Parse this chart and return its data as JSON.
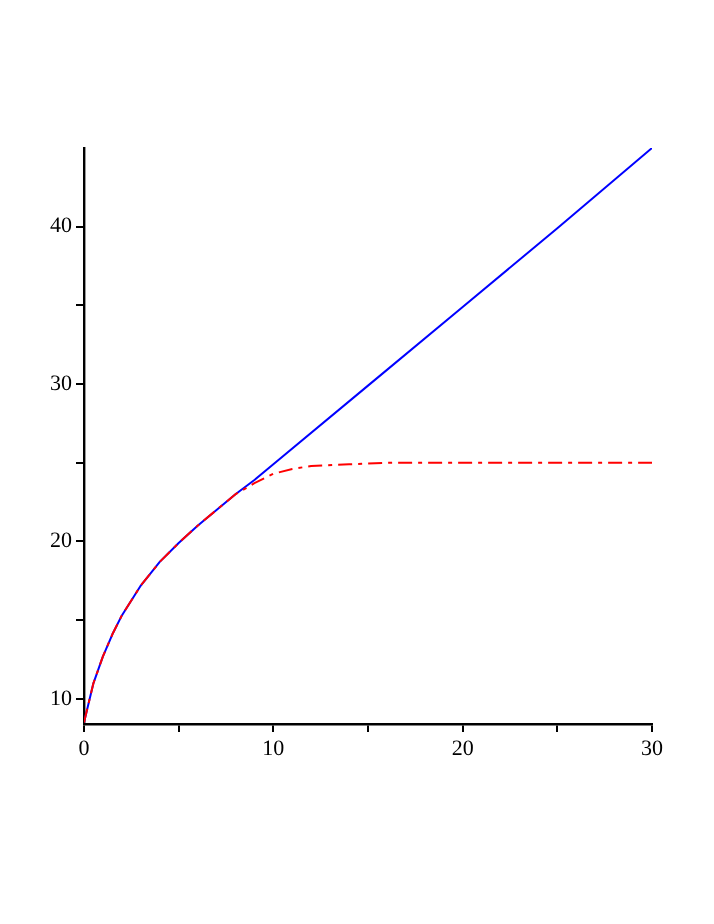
{
  "chart_data": {
    "type": "line",
    "xlim": [
      0,
      30
    ],
    "xticks": [
      0,
      {
        "value": 5,
        "label": null
      },
      10,
      {
        "value": 15,
        "label": null
      },
      20,
      {
        "value": 25,
        "label": null
      },
      30
    ],
    "ylim": [
      8.4,
      45
    ],
    "yticks": [
      10,
      {
        "value": 15,
        "label": null
      },
      20,
      {
        "value": 25,
        "label": null
      },
      30,
      {
        "value": 35,
        "label": null
      },
      40
    ],
    "grid": false,
    "legend": false,
    "marker": "none",
    "series": [
      {
        "color": "#0000ff",
        "line_style": "solid",
        "x": [
          0,
          0.5,
          1,
          1.5,
          2,
          3,
          4,
          5,
          6,
          7,
          8,
          9,
          10,
          15,
          20,
          25,
          30
        ],
        "values": [
          8.5,
          11,
          12.7,
          14.1,
          15.3,
          17.2,
          18.7,
          19.9,
          21.0,
          22.0,
          23.0,
          23.9,
          24.9,
          29.9,
          34.9,
          39.9,
          45
        ]
      },
      {
        "color": "#ff0000",
        "line_style": "dashed",
        "x": [
          0,
          0.5,
          1,
          1.5,
          2,
          3,
          4,
          5,
          6,
          7,
          8,
          9,
          10,
          11,
          12,
          14,
          16,
          30
        ],
        "values": [
          8.5,
          11,
          12.7,
          14.1,
          15.3,
          17.2,
          18.7,
          19.9,
          21.0,
          22.0,
          23.0,
          23.7,
          24.3,
          24.6,
          24.8,
          24.9,
          25,
          25
        ]
      }
    ]
  }
}
